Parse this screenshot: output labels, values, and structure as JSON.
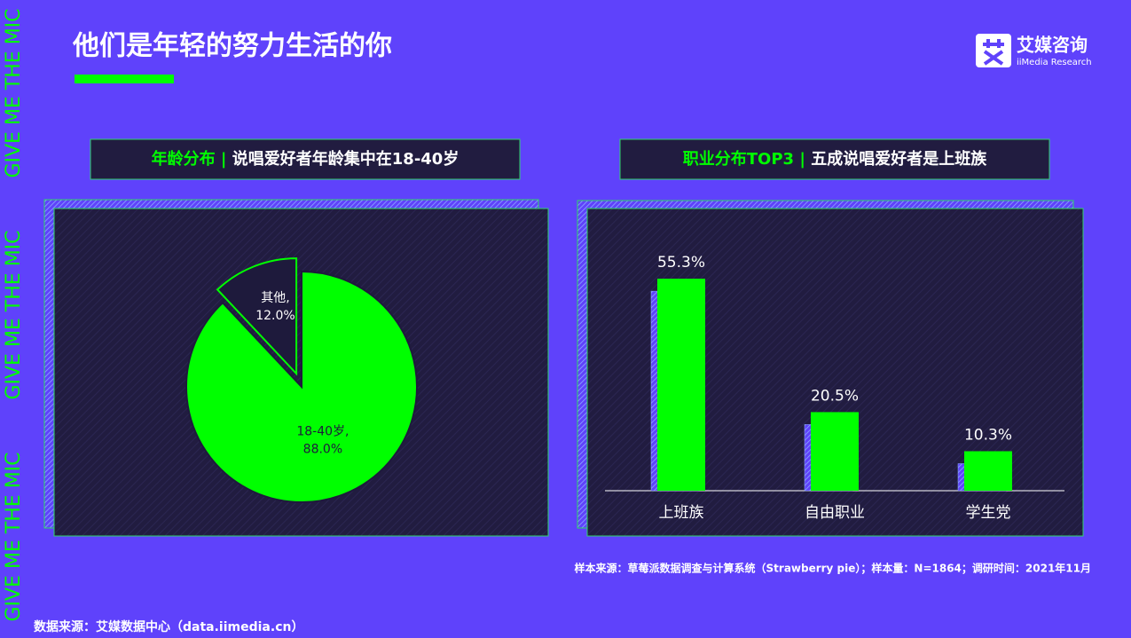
{
  "header": {
    "title": "他们是年轻的努力生活的你",
    "logo_name": "艾媒咨询",
    "logo_sub": "iiMedia Research"
  },
  "side_text": [
    "GIVE ME THE MIC",
    "GIVE ME THE MIC",
    "GIVE ME THE MIC"
  ],
  "chart_data": [
    {
      "type": "pie",
      "title": "年龄分布 |",
      "subtitle": "说唱爱好者年龄集中在18-40岁",
      "categories": [
        "其他,",
        "18-40岁,"
      ],
      "values": [
        12.0,
        88.0
      ],
      "value_labels": [
        "12.0%",
        "88.0%"
      ],
      "colors": [
        "#1e1a3c",
        "#00ff00"
      ]
    },
    {
      "type": "bar",
      "title": "职业分布TOP3 |",
      "subtitle": "五成说唱爱好者是上班族",
      "categories": [
        "上班族",
        "自由职业",
        "学生党"
      ],
      "values": [
        55.3,
        20.5,
        10.3
      ],
      "value_labels": [
        "55.3%",
        "20.5%",
        "10.3%"
      ],
      "color": "#00ff00"
    }
  ],
  "footer": {
    "sample": "样本来源：草莓派数据调查与计算系统（Strawberry pie）；样本量：N=1864；调研时间：2021年11月",
    "source": "数据来源：艾媒数据中心（data.iimedia.cn）"
  }
}
